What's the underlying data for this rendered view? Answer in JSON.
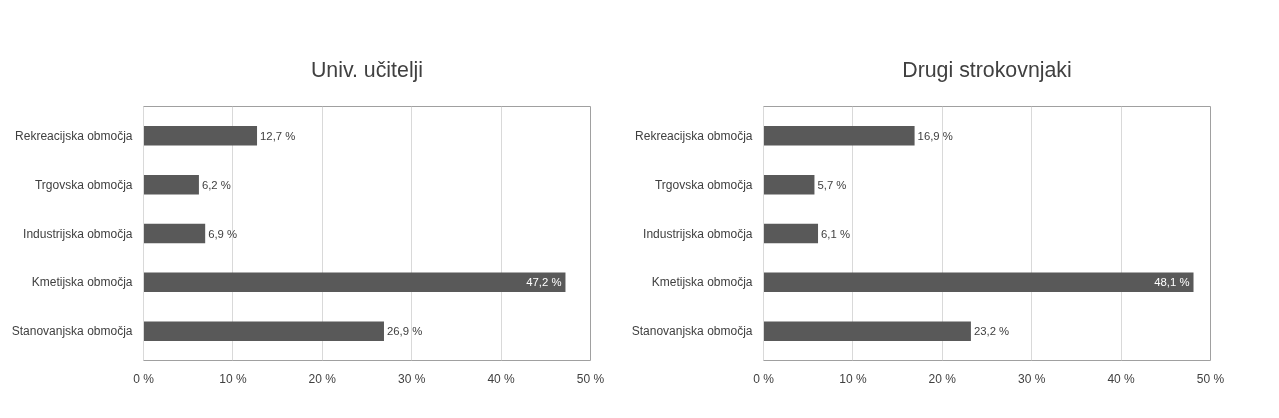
{
  "chart_data": [
    {
      "type": "bar",
      "orientation": "horizontal",
      "title": "Univ. učitelji",
      "categories": [
        "Rekreacijska območja",
        "Trgovska območja",
        "Industrijska območja",
        "Kmetijska območja",
        "Stanovanjska območja"
      ],
      "values": [
        12.7,
        6.2,
        6.9,
        47.2,
        26.9
      ],
      "value_labels": [
        "12,7 %",
        "6,2 %",
        "6,9 %",
        "47,2 %",
        "26,9 %"
      ],
      "color": "#595959",
      "xlim": [
        0,
        50
      ],
      "xticks": [
        {
          "value": 0,
          "label": "0 %"
        },
        {
          "value": 10,
          "label": "10 %"
        },
        {
          "value": 20,
          "label": "20 %"
        },
        {
          "value": 30,
          "label": "30 %"
        },
        {
          "value": 40,
          "label": "40 %"
        },
        {
          "value": 50,
          "label": "50 %"
        }
      ],
      "grid": "x"
    },
    {
      "type": "bar",
      "orientation": "horizontal",
      "title": "Drugi strokovnjaki",
      "categories": [
        "Rekreacijska območja",
        "Trgovska območja",
        "Industrijska območja",
        "Kmetijska območja",
        "Stanovanjska območja"
      ],
      "values": [
        16.9,
        5.7,
        6.1,
        48.1,
        23.2
      ],
      "value_labels": [
        "16,9 %",
        "5,7 %",
        "6,1 %",
        "48,1 %",
        "23,2 %"
      ],
      "color": "#595959",
      "xlim": [
        0,
        50
      ],
      "xticks": [
        {
          "value": 0,
          "label": "0 %"
        },
        {
          "value": 10,
          "label": "10 %"
        },
        {
          "value": 20,
          "label": "20 %"
        },
        {
          "value": 30,
          "label": "30 %"
        },
        {
          "value": 40,
          "label": "40 %"
        },
        {
          "value": 50,
          "label": "50 %"
        }
      ],
      "grid": "x"
    }
  ]
}
